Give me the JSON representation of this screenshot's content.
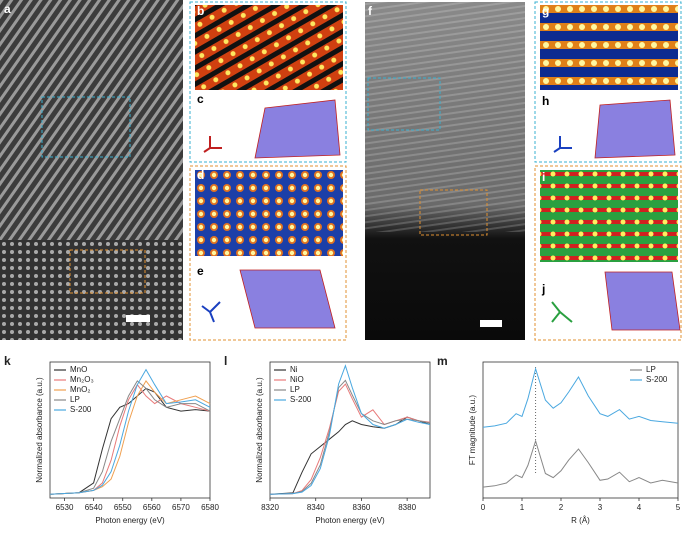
{
  "panel_labels": [
    "a",
    "b",
    "c",
    "d",
    "e",
    "f",
    "g",
    "h",
    "i",
    "j"
  ],
  "chart_data": [
    {
      "type": "line",
      "label": "k",
      "xlabel": "Photon energy (eV)",
      "ylabel": "Normalized absorbance (a.u.)",
      "x": [
        6525,
        6535,
        6540,
        6543,
        6546,
        6549,
        6552,
        6555,
        6558,
        6561,
        6565,
        6570,
        6575,
        6580
      ],
      "xlim": [
        6525,
        6580
      ],
      "xticks": [
        6530,
        6540,
        6550,
        6560,
        6570,
        6580
      ],
      "ylim": [
        -0.05,
        1.75
      ],
      "legend": "upper left",
      "series": [
        {
          "name": "MnO",
          "color": "#333333",
          "values": [
            0,
            0.02,
            0.15,
            0.6,
            1.0,
            1.15,
            1.2,
            1.3,
            1.4,
            1.35,
            1.15,
            1.1,
            1.12,
            1.1
          ]
        },
        {
          "name": "Mn₂O₃",
          "color": "#e87a7a",
          "values": [
            0,
            0.02,
            0.05,
            0.15,
            0.45,
            0.9,
            1.25,
            1.45,
            1.3,
            1.2,
            1.3,
            1.2,
            1.15,
            1.1
          ]
        },
        {
          "name": "MnO₂",
          "color": "#f0a050",
          "values": [
            0,
            0.02,
            0.05,
            0.1,
            0.2,
            0.5,
            0.95,
            1.3,
            1.5,
            1.35,
            1.2,
            1.25,
            1.3,
            1.2
          ]
        },
        {
          "name": "LP",
          "color": "#888888",
          "values": [
            0,
            0.02,
            0.08,
            0.3,
            0.7,
            1.0,
            1.3,
            1.5,
            1.4,
            1.25,
            1.15,
            1.2,
            1.2,
            1.1
          ]
        },
        {
          "name": "S-200",
          "color": "#4aa8e0",
          "values": [
            0,
            0.02,
            0.05,
            0.12,
            0.3,
            0.65,
            1.1,
            1.45,
            1.65,
            1.45,
            1.2,
            1.22,
            1.25,
            1.15
          ]
        }
      ]
    },
    {
      "type": "line",
      "label": "l",
      "xlabel": "Photon energy (eV)",
      "ylabel": "Normalized absorbance (a.u.)",
      "x": [
        8320,
        8330,
        8334,
        8338,
        8342,
        8346,
        8350,
        8353,
        8356,
        8360,
        8365,
        8370,
        8375,
        8380,
        8385,
        8390
      ],
      "xlim": [
        8320,
        8390
      ],
      "xticks": [
        8320,
        8340,
        8360,
        8380
      ],
      "ylim": [
        -0.05,
        1.8
      ],
      "legend": "upper left",
      "series": [
        {
          "name": "Ni",
          "color": "#333333",
          "values": [
            0,
            0.02,
            0.3,
            0.55,
            0.65,
            0.75,
            0.85,
            0.95,
            1.0,
            0.95,
            0.92,
            0.9,
            0.95,
            1.05,
            1.0,
            0.95
          ]
        },
        {
          "name": "NiO",
          "color": "#e87a7a",
          "values": [
            0,
            0.01,
            0.05,
            0.2,
            0.5,
            0.9,
            1.4,
            1.5,
            1.3,
            1.05,
            1.15,
            0.95,
            1.0,
            1.05,
            1.0,
            0.98
          ]
        },
        {
          "name": "LP",
          "color": "#888888",
          "values": [
            0,
            0.01,
            0.04,
            0.15,
            0.4,
            0.85,
            1.45,
            1.55,
            1.35,
            1.1,
            1.0,
            0.95,
            1.0,
            1.02,
            1.0,
            0.97
          ]
        },
        {
          "name": "S-200",
          "color": "#4aa8e0",
          "values": [
            0,
            0.01,
            0.03,
            0.12,
            0.35,
            0.8,
            1.5,
            1.75,
            1.45,
            1.1,
            0.95,
            0.9,
            0.95,
            1.02,
            0.98,
            0.95
          ]
        }
      ]
    },
    {
      "type": "line",
      "label": "m",
      "xlabel": "R (Å)",
      "ylabel": "FT magnitude (a.u.)",
      "x": [
        0,
        0.3,
        0.6,
        0.85,
        1.0,
        1.15,
        1.35,
        1.6,
        1.8,
        2.0,
        2.2,
        2.45,
        2.7,
        3.0,
        3.2,
        3.5,
        3.75,
        4.0,
        4.3,
        4.6,
        5.0
      ],
      "xlim": [
        0,
        5
      ],
      "xticks": [
        0,
        1,
        2,
        3,
        4,
        5
      ],
      "ylim": [
        0,
        10
      ],
      "legend": "upper right",
      "vlines": [
        1.35
      ],
      "series": [
        {
          "name": "LP",
          "color": "#888888",
          "values": [
            0.8,
            0.9,
            1.1,
            1.7,
            1.5,
            2.4,
            4.2,
            1.8,
            1.5,
            2.0,
            2.8,
            3.6,
            2.6,
            1.3,
            1.4,
            1.9,
            1.2,
            1.5,
            1.1,
            1.3,
            1.1
          ]
        },
        {
          "name": "S-200",
          "color": "#4aa8e0",
          "values": [
            5.2,
            5.3,
            5.5,
            6.2,
            6.0,
            7.3,
            9.5,
            7.2,
            6.6,
            7.0,
            7.8,
            8.9,
            7.5,
            6.2,
            6.0,
            6.5,
            5.8,
            6.0,
            5.7,
            5.6,
            5.5
          ]
        }
      ]
    }
  ]
}
